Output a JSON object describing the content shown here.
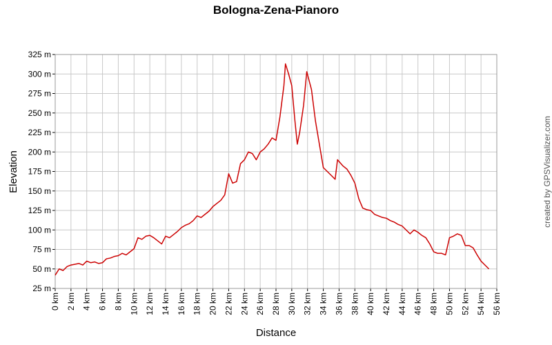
{
  "chart_data": {
    "type": "line",
    "title": "Bologna-Zena-Pianoro",
    "x_label": "Distance",
    "y_label": "Elevation",
    "credit": "created by GPSVisualizer.com",
    "xlim": [
      0,
      56
    ],
    "ylim": [
      25,
      325
    ],
    "grid": true,
    "xticks": [
      {
        "value": 0,
        "label": "0 km"
      },
      {
        "value": 2,
        "label": "2 km"
      },
      {
        "value": 4,
        "label": "4 km"
      },
      {
        "value": 6,
        "label": "6 km"
      },
      {
        "value": 8,
        "label": "8 km"
      },
      {
        "value": 10,
        "label": "10 km"
      },
      {
        "value": 12,
        "label": "12 km"
      },
      {
        "value": 14,
        "label": "14 km"
      },
      {
        "value": 16,
        "label": "16 km"
      },
      {
        "value": 18,
        "label": "18 km"
      },
      {
        "value": 20,
        "label": "20 km"
      },
      {
        "value": 22,
        "label": "22 km"
      },
      {
        "value": 24,
        "label": "24 km"
      },
      {
        "value": 26,
        "label": "26 km"
      },
      {
        "value": 28,
        "label": "28 km"
      },
      {
        "value": 30,
        "label": "30 km"
      },
      {
        "value": 32,
        "label": "32 km"
      },
      {
        "value": 34,
        "label": "34 km"
      },
      {
        "value": 36,
        "label": "36 km"
      },
      {
        "value": 38,
        "label": "38 km"
      },
      {
        "value": 40,
        "label": "40 km"
      },
      {
        "value": 42,
        "label": "42 km"
      },
      {
        "value": 44,
        "label": "44 km"
      },
      {
        "value": 46,
        "label": "46 km"
      },
      {
        "value": 48,
        "label": "48 km"
      },
      {
        "value": 50,
        "label": "50 km"
      },
      {
        "value": 52,
        "label": "52 km"
      },
      {
        "value": 54,
        "label": "54 km"
      },
      {
        "value": 56,
        "label": "56 km"
      }
    ],
    "yticks": [
      {
        "value": 25,
        "label": "25 m"
      },
      {
        "value": 50,
        "label": "50 m"
      },
      {
        "value": 75,
        "label": "75 m"
      },
      {
        "value": 100,
        "label": "100 m"
      },
      {
        "value": 125,
        "label": "125 m"
      },
      {
        "value": 150,
        "label": "150 m"
      },
      {
        "value": 175,
        "label": "175 m"
      },
      {
        "value": 200,
        "label": "200 m"
      },
      {
        "value": 225,
        "label": "225 m"
      },
      {
        "value": 250,
        "label": "250 m"
      },
      {
        "value": 275,
        "label": "275 m"
      },
      {
        "value": 300,
        "label": "300 m"
      },
      {
        "value": 325,
        "label": "325 m"
      }
    ],
    "series": [
      {
        "name": "Elevation",
        "color": "#cc0000",
        "x": [
          0,
          0.5,
          1,
          1.5,
          2,
          2.5,
          3,
          3.5,
          4,
          4.5,
          5,
          5.5,
          6,
          6.5,
          7,
          7.5,
          8,
          8.5,
          9,
          9.5,
          10,
          10.5,
          11,
          11.5,
          12,
          12.5,
          13,
          13.5,
          14,
          14.5,
          15,
          15.5,
          16,
          16.5,
          17,
          17.5,
          18,
          18.5,
          19,
          19.5,
          20,
          20.5,
          21,
          21.5,
          22,
          22.5,
          23,
          23.5,
          24,
          24.5,
          25,
          25.5,
          26,
          26.5,
          27,
          27.5,
          28,
          28.5,
          29,
          29.2,
          29.6,
          30,
          30.4,
          30.7,
          31,
          31.5,
          31.9,
          32.5,
          33,
          33.5,
          34,
          34.5,
          35,
          35.5,
          35.8,
          36.5,
          37,
          37.5,
          38,
          38.5,
          39,
          39.5,
          40,
          40.5,
          41,
          41.5,
          42,
          42.5,
          43,
          43.5,
          44,
          44.5,
          45,
          45.5,
          46,
          46.5,
          47,
          47.5,
          48,
          48.5,
          49,
          49.5,
          50,
          50.5,
          51,
          51.5,
          52,
          52.5,
          53,
          53.5,
          54,
          54.5,
          55
        ],
        "values": [
          42,
          50,
          48,
          53,
          55,
          56,
          57,
          55,
          60,
          58,
          59,
          57,
          58,
          63,
          64,
          66,
          67,
          70,
          68,
          72,
          76,
          90,
          88,
          92,
          93,
          90,
          86,
          82,
          92,
          90,
          94,
          98,
          103,
          106,
          108,
          112,
          118,
          116,
          120,
          124,
          130,
          134,
          138,
          145,
          172,
          160,
          162,
          185,
          190,
          200,
          198,
          190,
          200,
          204,
          210,
          218,
          215,
          245,
          285,
          313,
          300,
          285,
          240,
          210,
          225,
          260,
          303,
          280,
          240,
          210,
          180,
          175,
          170,
          165,
          190,
          182,
          178,
          170,
          160,
          140,
          128,
          126,
          125,
          120,
          118,
          116,
          115,
          112,
          110,
          107,
          105,
          100,
          95,
          100,
          97,
          93,
          90,
          82,
          72,
          70,
          70,
          68,
          90,
          92,
          95,
          93,
          80,
          80,
          77,
          68,
          60,
          55,
          50
        ]
      }
    ]
  }
}
